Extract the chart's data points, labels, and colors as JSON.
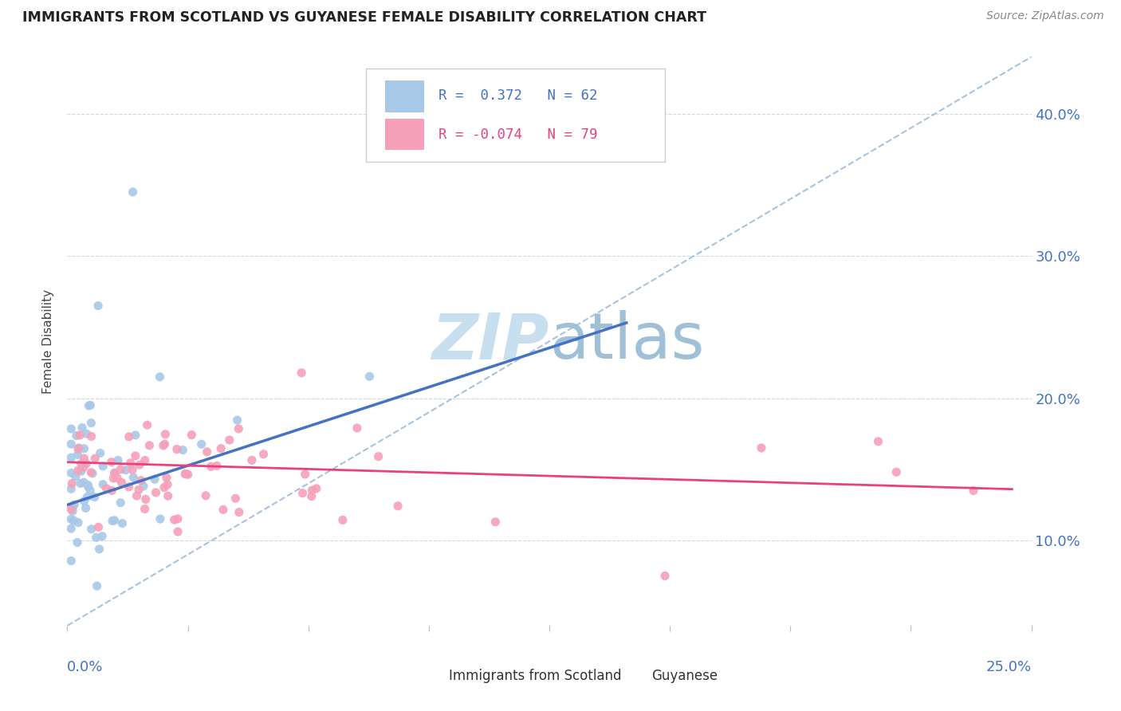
{
  "title": "IMMIGRANTS FROM SCOTLAND VS GUYANESE FEMALE DISABILITY CORRELATION CHART",
  "source": "Source: ZipAtlas.com",
  "ylabel": "Female Disability",
  "xlim": [
    0.0,
    0.25
  ],
  "ylim": [
    0.04,
    0.44
  ],
  "yticks": [
    0.1,
    0.2,
    0.3,
    0.4
  ],
  "ytick_labels": [
    "10.0%",
    "20.0%",
    "30.0%",
    "40.0%"
  ],
  "color_scotland": "#a8c8e8",
  "color_guyanese": "#f5a0b8",
  "color_trend_scotland": "#4472c4",
  "color_trend_guyanese": "#e84080",
  "color_ref_line": "#9ab8d8",
  "color_title": "#222222",
  "color_source": "#888888",
  "color_axis_labels": "#4472c4",
  "background_color": "#ffffff",
  "watermark_color": "#c8dff0",
  "grid_color": "#d0d8e0",
  "legend_border_color": "#cccccc",
  "scotland_trend_x": [
    0.0,
    0.145
  ],
  "scotland_trend_y": [
    0.125,
    0.253
  ],
  "guyanese_trend_x": [
    0.0,
    0.245
  ],
  "guyanese_trend_y": [
    0.155,
    0.136
  ],
  "ref_line_x": [
    0.0,
    0.25
  ],
  "ref_line_y": [
    0.04,
    0.44
  ]
}
